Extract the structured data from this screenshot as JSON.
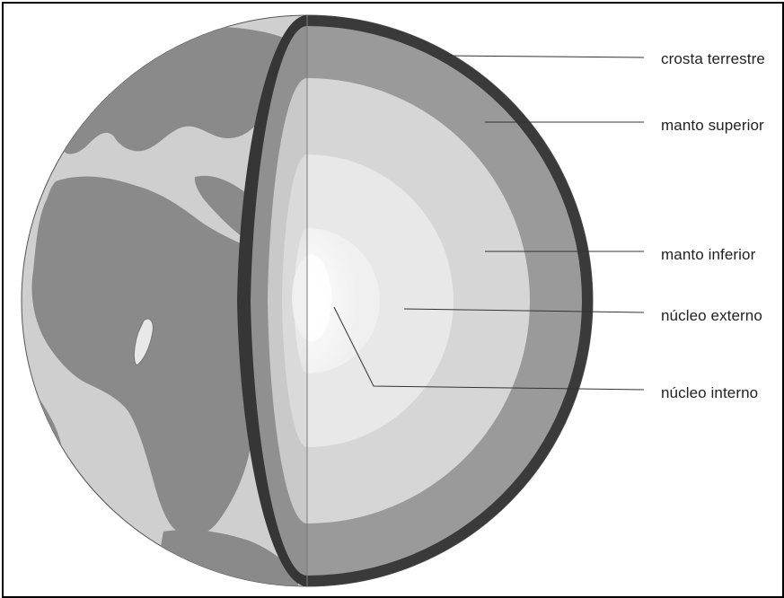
{
  "labels": {
    "crust": "crosta terrestre",
    "upper_mantle": "manto superior",
    "lower_mantle": "manto inferior",
    "outer_core": "núcleo externo",
    "inner_core": "núcleo interno"
  },
  "colors": {
    "ocean": "#cfcfcf",
    "land": "#8a8a8a",
    "crust": "#3a3a3a",
    "upper_mantle": "#9a9a9a",
    "lower_mantle": "#d6d6d6",
    "outer_core": "#e8e8e8",
    "inner_core": "#fafafa",
    "leader_line": "#333333"
  }
}
